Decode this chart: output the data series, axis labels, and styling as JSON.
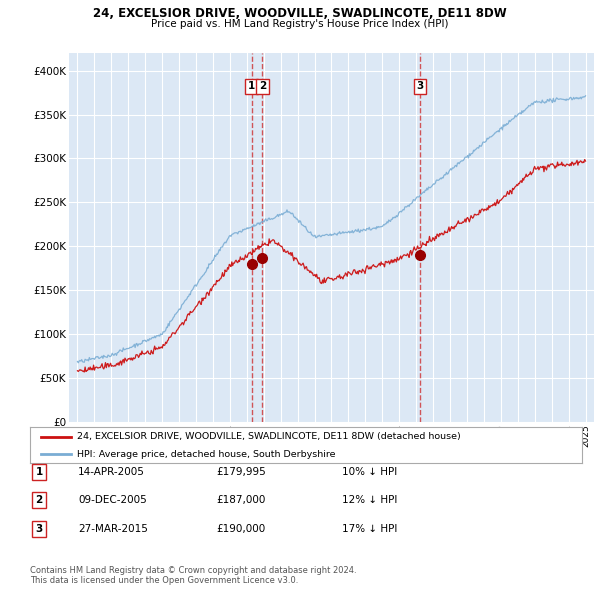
{
  "title_line1": "24, EXCELSIOR DRIVE, WOODVILLE, SWADLINCOTE, DE11 8DW",
  "title_line2": "Price paid vs. HM Land Registry's House Price Index (HPI)",
  "background_color": "#ffffff",
  "plot_bg_color": "#dce8f5",
  "grid_color": "#ffffff",
  "sale1": {
    "date_num": 2005.28,
    "price": 179995,
    "label": "1"
  },
  "sale2": {
    "date_num": 2005.92,
    "price": 187000,
    "label": "2"
  },
  "sale3": {
    "date_num": 2015.23,
    "price": 190000,
    "label": "3"
  },
  "legend_entries": [
    "24, EXCELSIOR DRIVE, WOODVILLE, SWADLINCOTE, DE11 8DW (detached house)",
    "HPI: Average price, detached house, South Derbyshire"
  ],
  "table": [
    {
      "num": "1",
      "date": "14-APR-2005",
      "price": "£179,995",
      "hpi": "10% ↓ HPI"
    },
    {
      "num": "2",
      "date": "09-DEC-2005",
      "price": "£187,000",
      "hpi": "12% ↓ HPI"
    },
    {
      "num": "3",
      "date": "27-MAR-2015",
      "price": "£190,000",
      "hpi": "17% ↓ HPI"
    }
  ],
  "footnote": "Contains HM Land Registry data © Crown copyright and database right 2024.\nThis data is licensed under the Open Government Licence v3.0.",
  "hpi_color": "#7aadd4",
  "price_color": "#cc1111",
  "dashed_color": "#cc2222",
  "ylim": [
    0,
    420000
  ],
  "yticks": [
    0,
    50000,
    100000,
    150000,
    200000,
    250000,
    300000,
    350000,
    400000
  ],
  "xlim": [
    1994.5,
    2025.5
  ]
}
